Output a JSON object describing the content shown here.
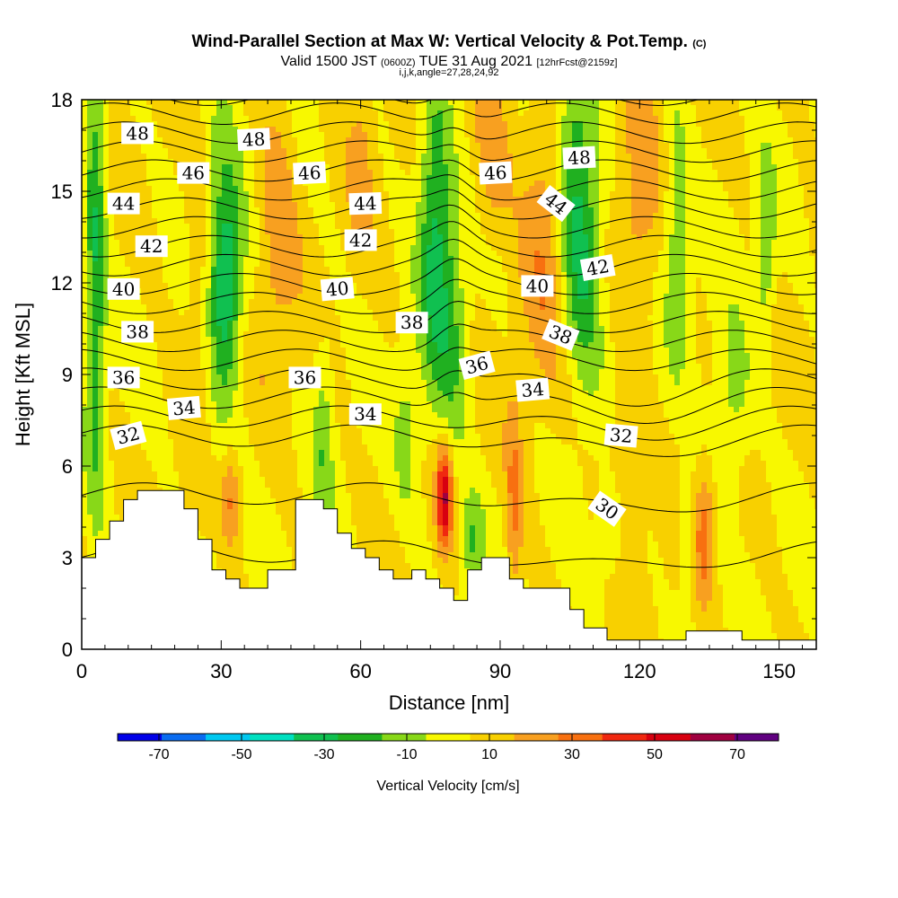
{
  "header": {
    "title_main": "Wind-Parallel Section at Max W: Vertical Velocity & Pot.Temp.",
    "title_tag": "(C)",
    "valid_pre": "Valid 1500 JST",
    "valid_utc": "(0600Z)",
    "valid_post": "TUE 31 Aug 2021",
    "fcst": "[12hrFcst@2159z]",
    "ijk": "i,j,k,angle=27,28,24,92"
  },
  "chart_data": {
    "type": "heatmap",
    "xlabel": "Distance [nm]",
    "ylabel": "Height [Kft MSL]",
    "xlim": [
      0,
      158
    ],
    "ylim": [
      0,
      18
    ],
    "x_ticks": [
      "0",
      "30",
      "60",
      "90",
      "120",
      "150"
    ],
    "x_tick_values": [
      0,
      30,
      60,
      90,
      120,
      150
    ],
    "y_ticks": [
      "0",
      "3",
      "6",
      "9",
      "12",
      "15",
      "18"
    ],
    "y_tick_values": [
      0,
      3,
      6,
      9,
      12,
      15,
      18
    ],
    "colorbar": {
      "title": "Vertical Velocity [cm/s]",
      "labels": [
        "-70",
        "-50",
        "-30",
        "-10",
        "10",
        "30",
        "50",
        "70"
      ],
      "label_values": [
        -70,
        -50,
        -30,
        -10,
        10,
        30,
        50,
        70
      ],
      "bounds": [
        -80,
        80
      ],
      "colors": [
        "#0000e8",
        "#0a6cf0",
        "#00c8f0",
        "#00e0c0",
        "#10c050",
        "#20b020",
        "#88d818",
        "#f8f800",
        "#f8d000",
        "#f8a020",
        "#f87010",
        "#f02810",
        "#d80010",
        "#a00040",
        "#600080"
      ]
    },
    "terrain": [
      [
        0,
        3
      ],
      [
        3,
        3
      ],
      [
        3,
        3.6
      ],
      [
        6,
        3.6
      ],
      [
        6,
        4.2
      ],
      [
        9,
        4.2
      ],
      [
        9,
        4.9
      ],
      [
        12,
        4.9
      ],
      [
        12,
        5.2
      ],
      [
        22,
        5.2
      ],
      [
        22,
        4.6
      ],
      [
        25,
        4.6
      ],
      [
        25,
        3.6
      ],
      [
        28,
        3.6
      ],
      [
        28,
        2.6
      ],
      [
        31,
        2.6
      ],
      [
        31,
        2.3
      ],
      [
        34,
        2.3
      ],
      [
        34,
        2
      ],
      [
        40,
        2
      ],
      [
        40,
        2.6
      ],
      [
        46,
        2.6
      ],
      [
        46,
        4.9
      ],
      [
        52,
        4.9
      ],
      [
        52,
        4.6
      ],
      [
        55,
        4.6
      ],
      [
        55,
        3.8
      ],
      [
        58,
        3.8
      ],
      [
        58,
        3.3
      ],
      [
        61,
        3.3
      ],
      [
        61,
        3
      ],
      [
        64,
        3
      ],
      [
        64,
        2.6
      ],
      [
        67,
        2.6
      ],
      [
        67,
        2.3
      ],
      [
        71,
        2.3
      ],
      [
        71,
        2.6
      ],
      [
        74,
        2.6
      ],
      [
        74,
        2.3
      ],
      [
        77,
        2.3
      ],
      [
        77,
        2
      ],
      [
        80,
        2
      ],
      [
        80,
        1.6
      ],
      [
        83,
        1.6
      ],
      [
        83,
        2.6
      ],
      [
        86,
        2.6
      ],
      [
        86,
        3
      ],
      [
        92,
        3
      ],
      [
        92,
        2.3
      ],
      [
        95,
        2.3
      ],
      [
        95,
        2
      ],
      [
        105,
        2
      ],
      [
        105,
        1.3
      ],
      [
        108,
        1.3
      ],
      [
        108,
        0.7
      ],
      [
        113,
        0.7
      ],
      [
        113,
        0.3
      ],
      [
        130,
        0.3
      ],
      [
        130,
        0.6
      ],
      [
        142,
        0.6
      ],
      [
        142,
        0.3
      ],
      [
        158,
        0.3
      ],
      [
        158,
        0
      ],
      [
        0,
        0
      ]
    ],
    "updrafts": [
      {
        "x": 78,
        "y": 5,
        "sx": 1.2,
        "sy": 1.2,
        "w": 52
      },
      {
        "x": 93,
        "y": 4.5,
        "sx": 1.2,
        "sy": 2.5,
        "w": 22
      },
      {
        "x": 32,
        "y": 5,
        "sx": 1.5,
        "sy": 1.2,
        "w": 25
      },
      {
        "x": 134,
        "y": 3.8,
        "sx": 1.4,
        "sy": 1.4,
        "w": 26
      },
      {
        "x": 100,
        "y": 14,
        "sx": 4,
        "sy": 3.5,
        "w": 20
      },
      {
        "x": 42,
        "y": 14,
        "sx": 3,
        "sy": 3.5,
        "w": 16
      },
      {
        "x": 26,
        "y": 12,
        "sx": 2.5,
        "sy": 3,
        "w": 15
      },
      {
        "x": 120,
        "y": 15,
        "sx": 3,
        "sy": 3,
        "w": 15
      },
      {
        "x": 88,
        "y": 16,
        "sx": 3,
        "sy": 2,
        "w": 18
      },
      {
        "x": 117,
        "y": 6,
        "sx": 3,
        "sy": 2,
        "w": 15
      },
      {
        "x": 60,
        "y": 16,
        "sx": 2,
        "sy": 2,
        "w": 12
      }
    ],
    "downdrafts": [
      {
        "x": 3,
        "y": 13,
        "sx": 1.5,
        "sy": 6,
        "w": -32
      },
      {
        "x": 31,
        "y": 12,
        "sx": 2.5,
        "sy": 2,
        "w": -30
      },
      {
        "x": 30,
        "y": 12,
        "sx": 3,
        "sy": 5,
        "w": -18
      },
      {
        "x": 76,
        "y": 14,
        "sx": 2.5,
        "sy": 4,
        "w": -34
      },
      {
        "x": 80,
        "y": 10,
        "sx": 2.5,
        "sy": 3,
        "w": -18
      },
      {
        "x": 108,
        "y": 13,
        "sx": 3,
        "sy": 3,
        "w": -34
      },
      {
        "x": 105,
        "y": 16,
        "sx": 2.5,
        "sy": 3,
        "w": -22
      },
      {
        "x": 128,
        "y": 14,
        "sx": 2,
        "sy": 3,
        "w": -20
      },
      {
        "x": 147,
        "y": 13,
        "sx": 1.5,
        "sy": 2,
        "w": -22
      },
      {
        "x": 140,
        "y": 8,
        "sx": 3,
        "sy": 2,
        "w": -18
      },
      {
        "x": 84,
        "y": 3.5,
        "sx": 2,
        "sy": 1.2,
        "w": -24
      },
      {
        "x": 114,
        "y": 4,
        "sx": 2,
        "sy": 1.2,
        "w": -18
      },
      {
        "x": 52,
        "y": 7,
        "sx": 1.5,
        "sy": 2.5,
        "w": -16
      },
      {
        "x": 70,
        "y": 7,
        "sx": 2,
        "sy": 2,
        "w": -15
      },
      {
        "x": 130,
        "y": 3,
        "sx": 1,
        "sy": 2,
        "w": -16
      }
    ],
    "theta_labels": [
      {
        "text": "48",
        "x": 12,
        "y": 16.9,
        "angle": 0
      },
      {
        "text": "48",
        "x": 37,
        "y": 16.7,
        "angle": -3
      },
      {
        "text": "48",
        "x": 107,
        "y": 16.1,
        "angle": -3
      },
      {
        "text": "46",
        "x": 24,
        "y": 15.6,
        "angle": 0
      },
      {
        "text": "46",
        "x": 49,
        "y": 15.6,
        "angle": -3
      },
      {
        "text": "46",
        "x": 89,
        "y": 15.6,
        "angle": -3
      },
      {
        "text": "44",
        "x": 9,
        "y": 14.6,
        "angle": 0
      },
      {
        "text": "44",
        "x": 61,
        "y": 14.6,
        "angle": -2
      },
      {
        "text": "44",
        "x": 102,
        "y": 14.6,
        "angle": 38
      },
      {
        "text": "42",
        "x": 15,
        "y": 13.2,
        "angle": 0
      },
      {
        "text": "42",
        "x": 60,
        "y": 13.4,
        "angle": 0
      },
      {
        "text": "42",
        "x": 111,
        "y": 12.5,
        "angle": -10
      },
      {
        "text": "40",
        "x": 9,
        "y": 11.8,
        "angle": 0
      },
      {
        "text": "40",
        "x": 55,
        "y": 11.8,
        "angle": -5
      },
      {
        "text": "40",
        "x": 98,
        "y": 11.9,
        "angle": 0
      },
      {
        "text": "38",
        "x": 12,
        "y": 10.4,
        "angle": 0
      },
      {
        "text": "38",
        "x": 71,
        "y": 10.7,
        "angle": 0
      },
      {
        "text": "38",
        "x": 103,
        "y": 10.3,
        "angle": 22
      },
      {
        "text": "36",
        "x": 9,
        "y": 8.9,
        "angle": 0
      },
      {
        "text": "36",
        "x": 48,
        "y": 8.9,
        "angle": 0
      },
      {
        "text": "36",
        "x": 85,
        "y": 9.3,
        "angle": -15
      },
      {
        "text": "34",
        "x": 22,
        "y": 7.9,
        "angle": -5
      },
      {
        "text": "34",
        "x": 61,
        "y": 7.7,
        "angle": 0
      },
      {
        "text": "34",
        "x": 97,
        "y": 8.5,
        "angle": -5
      },
      {
        "text": "32",
        "x": 10,
        "y": 7,
        "angle": -15
      },
      {
        "text": "32",
        "x": 116,
        "y": 7,
        "angle": 5
      },
      {
        "text": "30",
        "x": 113,
        "y": 4.6,
        "angle": 35
      }
    ]
  }
}
